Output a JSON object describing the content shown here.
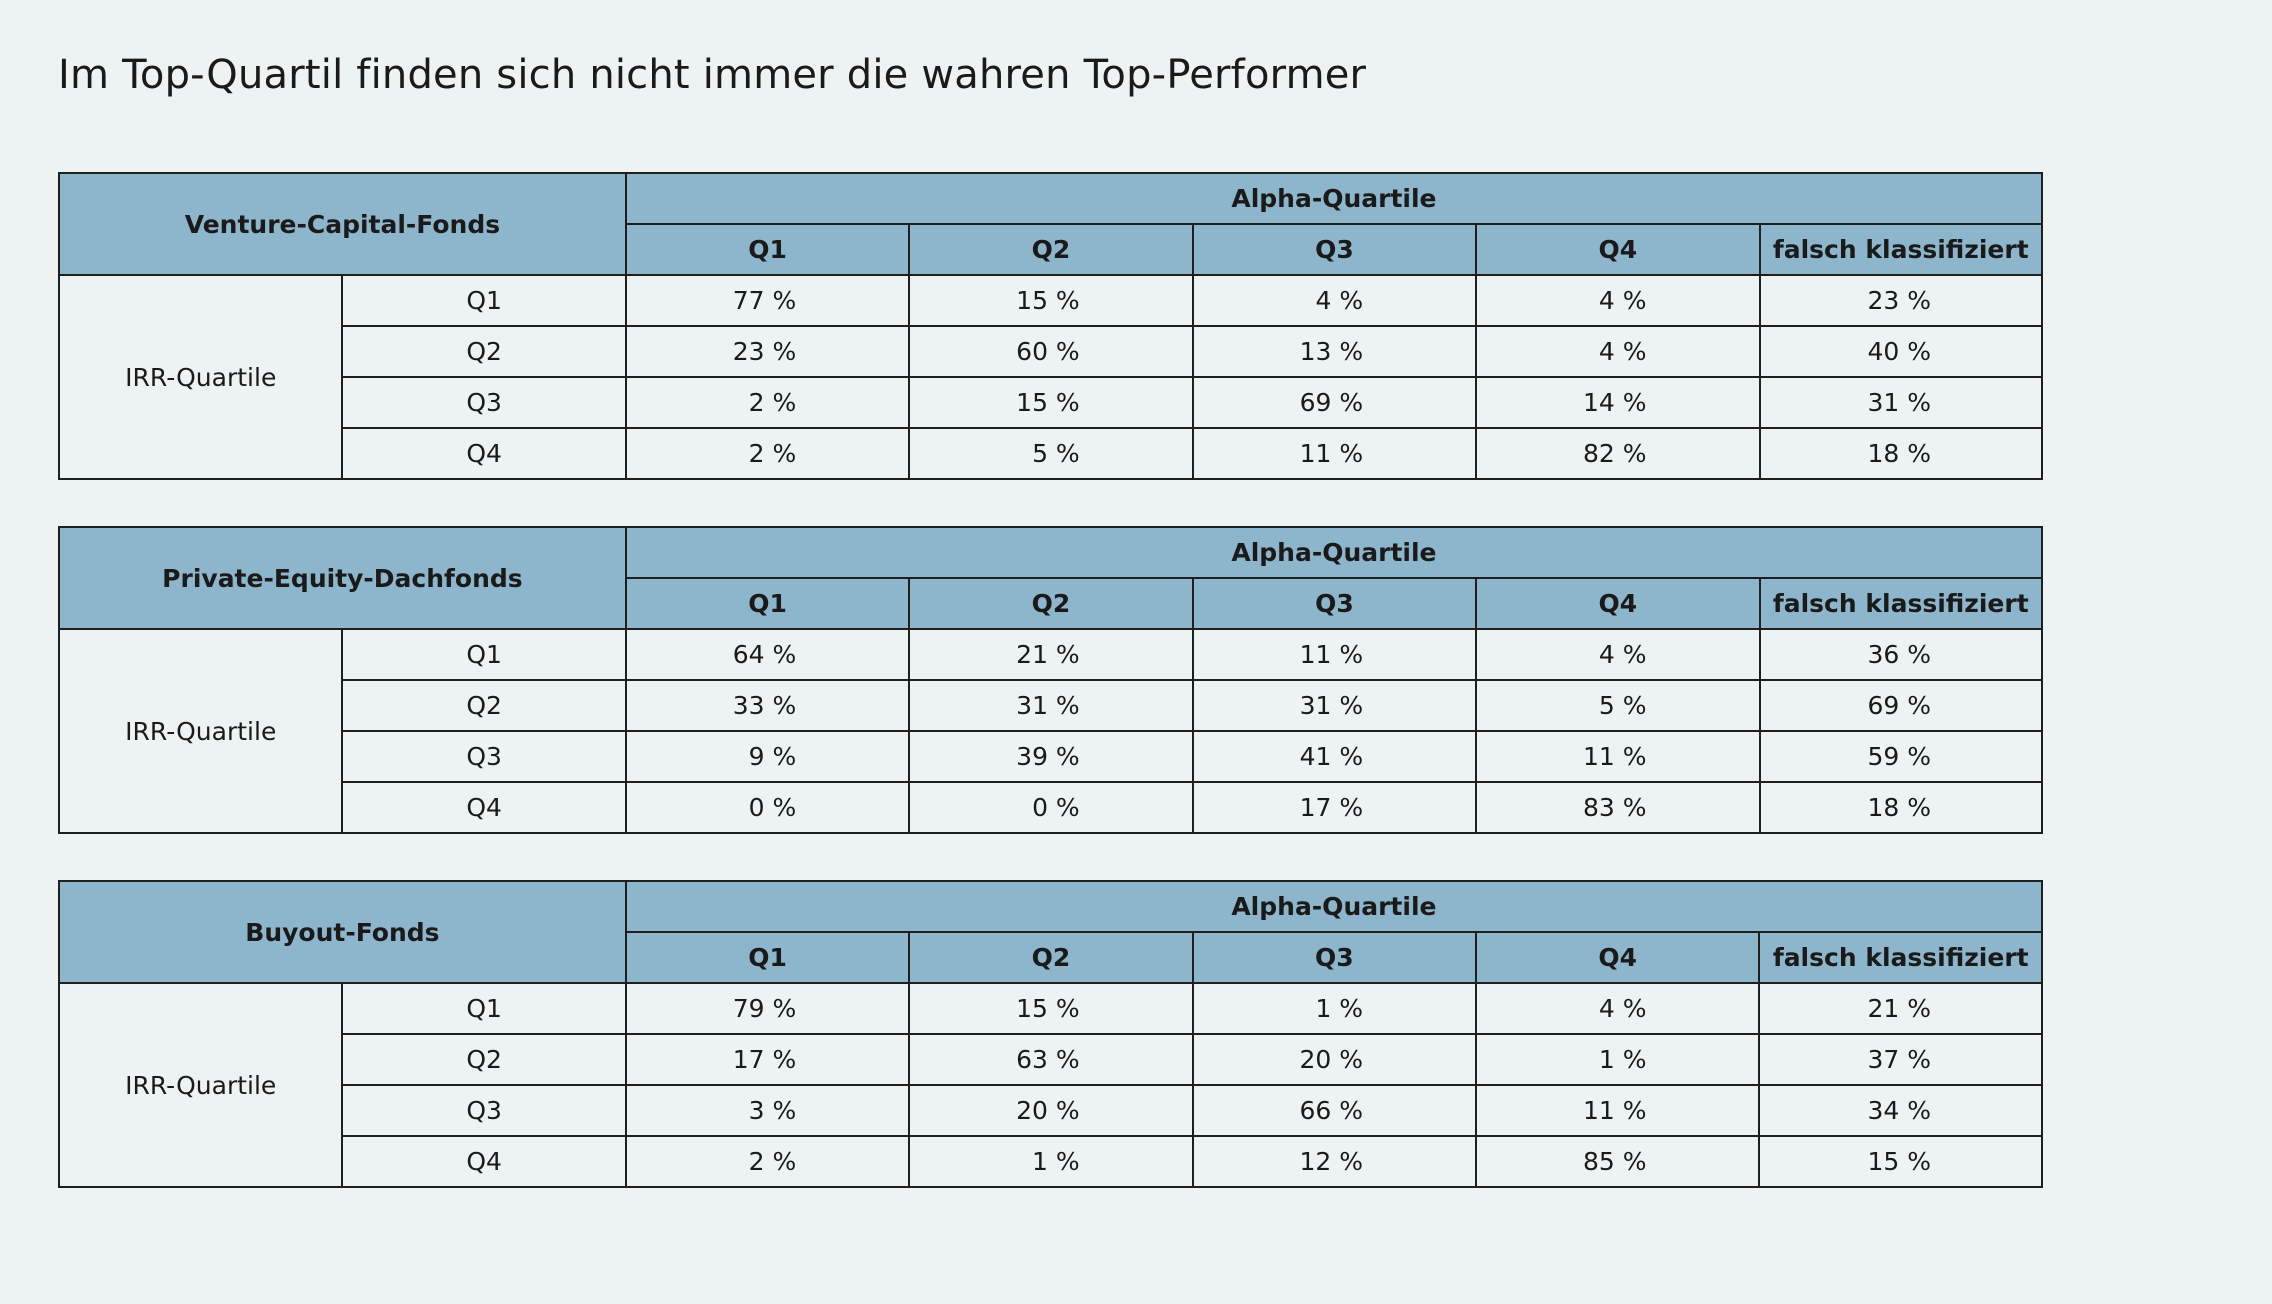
{
  "title": "Im Top-Quartil finden sich nicht immer die wahren Top-Performer",
  "group_header": "Alpha-Quartile",
  "row_group_label": "IRR-Quartile",
  "column_headers": [
    "Q1",
    "Q2",
    "Q3",
    "Q4",
    "falsch klassifiziert"
  ],
  "row_labels": [
    "Q1",
    "Q2",
    "Q3",
    "Q4"
  ],
  "tables": [
    {
      "name": "Venture-Capital-Fonds",
      "rows": [
        [
          "77 %",
          "15 %",
          "4 %",
          "4 %",
          "23 %"
        ],
        [
          "23 %",
          "60 %",
          "13 %",
          "4 %",
          "40 %"
        ],
        [
          "2 %",
          "15 %",
          "69 %",
          "14 %",
          "31 %"
        ],
        [
          "2 %",
          "5 %",
          "11 %",
          "82 %",
          "18 %"
        ]
      ]
    },
    {
      "name": "Private-Equity-Dachfonds",
      "rows": [
        [
          "64 %",
          "21 %",
          "11 %",
          "4 %",
          "36 %"
        ],
        [
          "33 %",
          "31 %",
          "31 %",
          "5 %",
          "69 %"
        ],
        [
          "9 %",
          "39 %",
          "41 %",
          "11 %",
          "59 %"
        ],
        [
          "0 %",
          "0 %",
          "17 %",
          "83 %",
          "18 %"
        ]
      ]
    },
    {
      "name": "Buyout-Fonds",
      "rows": [
        [
          "79 %",
          "15 %",
          "1 %",
          "4 %",
          "21 %"
        ],
        [
          "17 %",
          "63 %",
          "20 %",
          "1 %",
          "37 %"
        ],
        [
          "3 %",
          "20 %",
          "66 %",
          "11 %",
          "34 %"
        ],
        [
          "2 %",
          "1 %",
          "12 %",
          "85 %",
          "15 %"
        ]
      ]
    }
  ],
  "colors": {
    "background": "#edf3f3",
    "header_fill": "#8db5cb",
    "border": "#1f1f1f"
  }
}
